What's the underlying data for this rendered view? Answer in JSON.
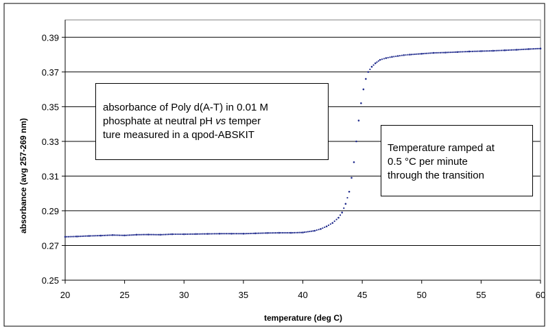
{
  "chart_data": {
    "type": "scatter",
    "title": "",
    "xlabel": "temperature (deg C)",
    "ylabel": "absorbance (avg 257-269 nm)",
    "xlim": [
      20,
      60
    ],
    "ylim": [
      0.25,
      0.4
    ],
    "xticks": [
      "20",
      "25",
      "30",
      "35",
      "40",
      "45",
      "50",
      "55",
      "60"
    ],
    "yticks": [
      "0.25",
      "0.27",
      "0.29",
      "0.31",
      "0.33",
      "0.35",
      "0.37",
      "0.39"
    ],
    "grid": "horizontal",
    "legend": "none",
    "series": [
      {
        "color": "#1f2a8c",
        "x": [
          20.0,
          21.0,
          22.0,
          23.0,
          24.0,
          25.0,
          26.0,
          27.0,
          28.0,
          29.0,
          30.0,
          31.0,
          32.0,
          33.0,
          34.0,
          35.0,
          36.0,
          37.0,
          38.0,
          39.0,
          40.0,
          41.0,
          41.5,
          42.0,
          42.5,
          43.0,
          43.3,
          43.6,
          43.9,
          44.1,
          44.3,
          44.5,
          44.7,
          44.9,
          45.1,
          45.3,
          45.5,
          45.8,
          46.1,
          46.5,
          47.0,
          47.5,
          48.0,
          48.5,
          49.0,
          50.0,
          51.0,
          52.0,
          53.0,
          54.0,
          55.0,
          56.0,
          57.0,
          58.0,
          59.0,
          60.0
        ],
        "y": [
          0.275,
          0.2752,
          0.2755,
          0.2757,
          0.276,
          0.2758,
          0.2762,
          0.2763,
          0.2762,
          0.2765,
          0.2765,
          0.2766,
          0.2767,
          0.2768,
          0.2768,
          0.2768,
          0.277,
          0.2772,
          0.2773,
          0.2773,
          0.2775,
          0.2785,
          0.2795,
          0.281,
          0.283,
          0.286,
          0.289,
          0.294,
          0.301,
          0.309,
          0.318,
          0.33,
          0.342,
          0.352,
          0.36,
          0.366,
          0.37,
          0.373,
          0.375,
          0.377,
          0.378,
          0.3787,
          0.3792,
          0.3797,
          0.38,
          0.3805,
          0.381,
          0.3812,
          0.3815,
          0.3818,
          0.382,
          0.3822,
          0.3825,
          0.3828,
          0.3832,
          0.3835
        ]
      }
    ]
  },
  "annotations": [
    {
      "lines": [
        "absorbance of Poly d(A-T) in 0.01 M",
        "phosphate at neutral pH vs temper­",
        "ture measured in a qpod-ABSKIT"
      ]
    },
    {
      "lines": [
        "Temperature ramped at",
        "0.5 °C per minute",
        "through the transition"
      ]
    }
  ]
}
